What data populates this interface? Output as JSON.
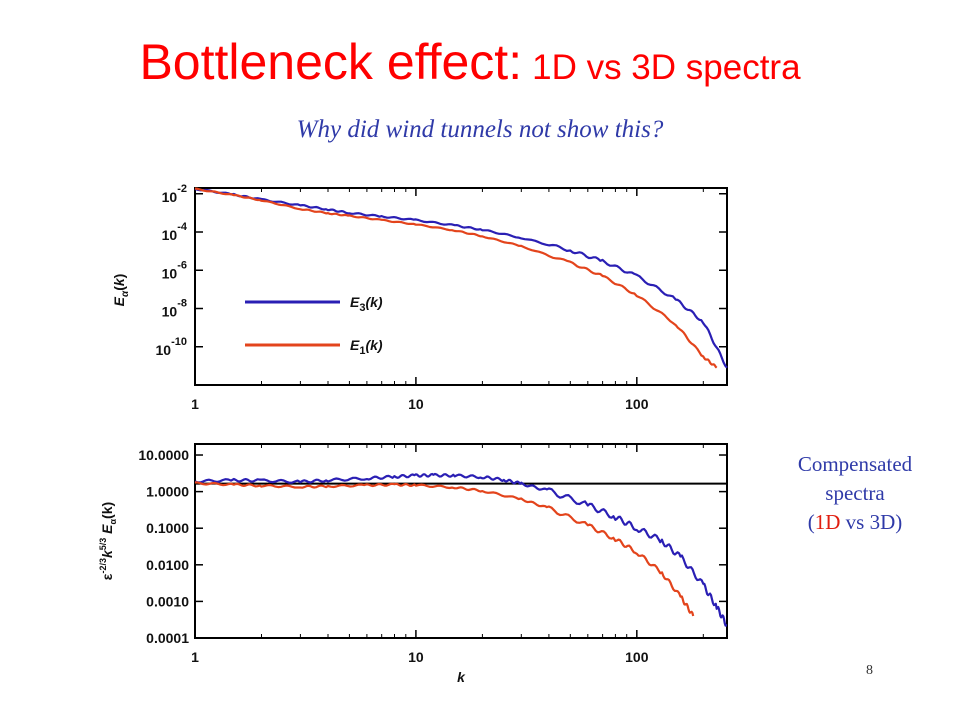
{
  "slide": {
    "title_main": "Bottleneck effect:",
    "title_sub": "1D vs 3D spectra",
    "subtitle": "Why did wind tunnels not show this?",
    "side_note": {
      "line1": "Compensated",
      "line2": "spectra",
      "open": "(",
      "red": "1D",
      "rest": " vs 3D)"
    },
    "page_number": "8"
  },
  "colors": {
    "title": "#ff0000",
    "E3": "#2a1fb4",
    "E1": "#e3441c",
    "subtitle": "#2f3aa8",
    "axis": "#000000"
  },
  "chart_data": [
    {
      "type": "line",
      "xscale": "log",
      "yscale": "log",
      "xlim": [
        1,
        256
      ],
      "ylim": [
        1e-12,
        0.02
      ],
      "xlabel": "",
      "ylabel": "E_α(k)",
      "xticklabels": [
        "1",
        "10",
        "100"
      ],
      "xticks": [
        1,
        10,
        100
      ],
      "yticks": [
        0.01,
        0.0001,
        1e-06,
        1e-08,
        1e-10
      ],
      "yticklabels": [
        {
          "base": "10",
          "exp": "-2"
        },
        {
          "base": "10",
          "exp": "-4"
        },
        {
          "base": "10",
          "exp": "-6"
        },
        {
          "base": "10",
          "exp": "-8"
        },
        {
          "base": "10",
          "exp": "-10"
        }
      ],
      "legend": {
        "placement": "center-left"
      },
      "series": [
        {
          "name": "E3(k)",
          "label_main": "E",
          "label_sub": "3",
          "label_arg": "(k)",
          "color": "#2a1fb4",
          "x": [
            1,
            1.5,
            2,
            3,
            4,
            5,
            7,
            10,
            15,
            20,
            30,
            50,
            70,
            100,
            150,
            200,
            256
          ],
          "y": [
            0.018,
            0.009,
            0.005,
            0.0025,
            0.0015,
            0.001,
            0.00065,
            0.00042,
            0.00022,
            0.00013,
            5e-05,
            1.1e-05,
            3e-06,
            5e-07,
            3e-08,
            2e-09,
            8e-12
          ]
        },
        {
          "name": "E1(k)",
          "label_main": "E",
          "label_sub": "1",
          "label_arg": "(k)",
          "color": "#e3441c",
          "x": [
            1,
            1.5,
            2,
            3,
            4,
            5,
            7,
            10,
            15,
            20,
            30,
            50,
            70,
            100,
            150,
            200,
            230
          ],
          "y": [
            0.018,
            0.0085,
            0.0045,
            0.0016,
            0.00095,
            0.0007,
            0.00042,
            0.00025,
            0.00012,
            6e-05,
            1.8e-05,
            2.5e-06,
            5e-07,
            5e-08,
            1.5e-09,
            3e-11,
            8e-12
          ]
        }
      ]
    },
    {
      "type": "line",
      "xscale": "log",
      "yscale": "log",
      "xlim": [
        1,
        256
      ],
      "ylim": [
        0.0001,
        20
      ],
      "xlabel": "k",
      "ylabel": "ε^{-2/3} k^{5/3} E_α(k)",
      "ylabel_parts": {
        "eps": "ε",
        "eps_exp": "-2/3",
        "k": "k",
        "k_exp": "5/3",
        "E": "E",
        "E_sub": "α",
        "arg": "(k)"
      },
      "xticklabels": [
        "1",
        "10",
        "100"
      ],
      "xticks": [
        1,
        10,
        100
      ],
      "yticks": [
        10,
        1,
        0.1,
        0.01,
        0.001,
        0.0001
      ],
      "yticklabels": [
        "10.0000",
        "1.0000",
        "0.1000",
        "0.0100",
        "0.0010",
        "0.0001"
      ],
      "reference_line": 1.65,
      "series": [
        {
          "name": "E3",
          "color": "#2a1fb4",
          "x": [
            1,
            1.5,
            2,
            3,
            4,
            6,
            8,
            10,
            12,
            15,
            20,
            25,
            30,
            40,
            60,
            80,
            100,
            130,
            160,
            200,
            230,
            256
          ],
          "y": [
            1.9,
            2.05,
            2.0,
            1.85,
            2.05,
            2.3,
            2.55,
            2.75,
            2.8,
            2.75,
            2.5,
            2.1,
            1.65,
            1.05,
            0.43,
            0.2,
            0.1,
            0.045,
            0.015,
            0.0028,
            0.0007,
            0.00022
          ]
        },
        {
          "name": "E1",
          "color": "#e3441c",
          "x": [
            1,
            1.5,
            2,
            3,
            4,
            6,
            8,
            10,
            15,
            20,
            30,
            40,
            60,
            80,
            100,
            130,
            160,
            180
          ],
          "y": [
            1.7,
            1.55,
            1.45,
            1.35,
            1.4,
            1.5,
            1.55,
            1.5,
            1.3,
            1.05,
            0.62,
            0.35,
            0.12,
            0.05,
            0.022,
            0.006,
            0.0012,
            0.0004
          ]
        }
      ]
    }
  ]
}
